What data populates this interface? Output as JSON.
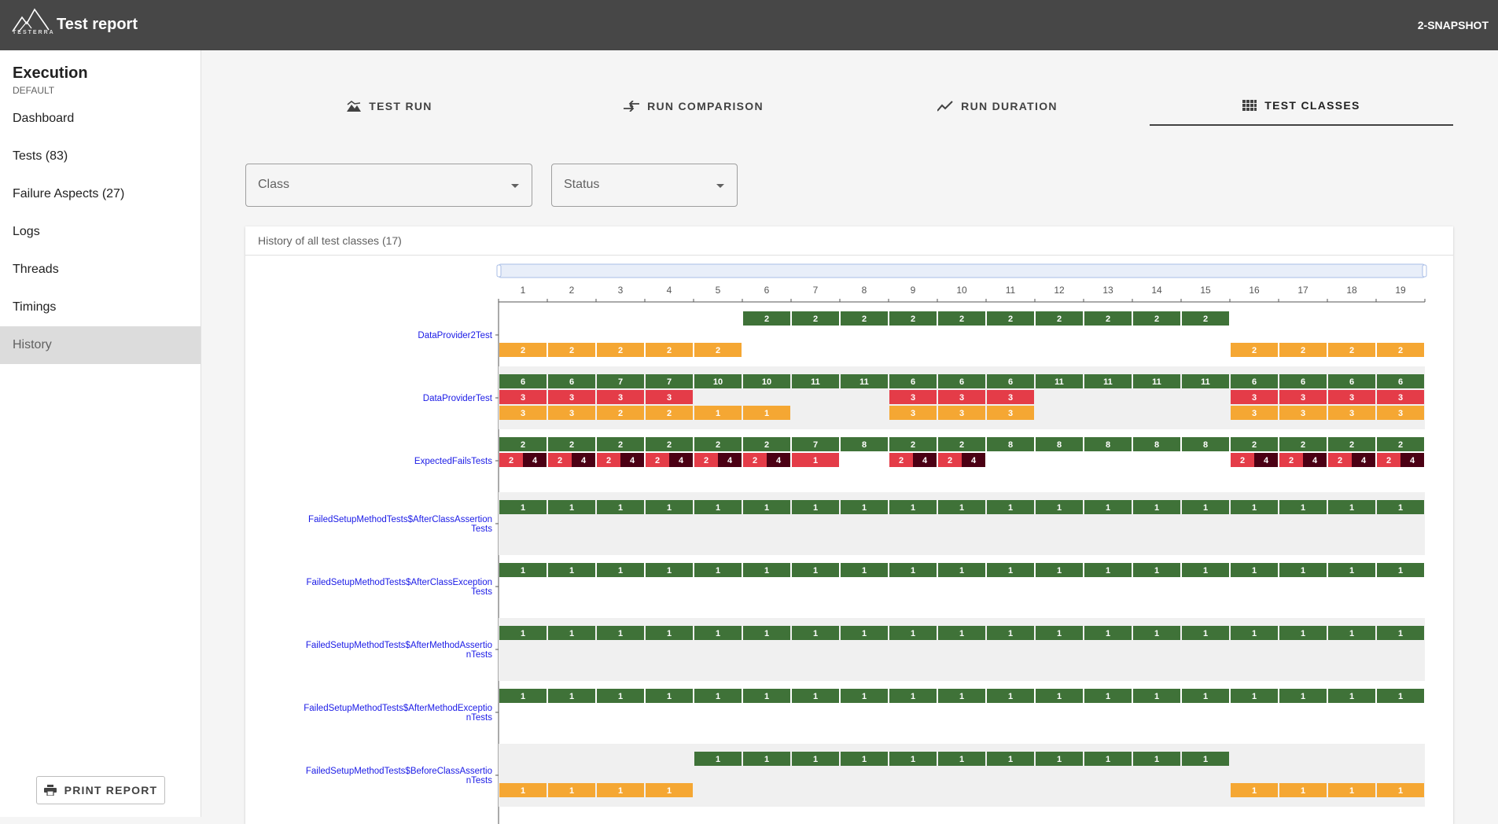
{
  "app": {
    "title": "Test report",
    "logo_text": "TESTERRA",
    "version": "2-SNAPSHOT"
  },
  "sidebar": {
    "title": "Execution",
    "subtitle": "DEFAULT",
    "items": [
      {
        "label": "Dashboard",
        "active": false
      },
      {
        "label": "Tests (83)",
        "active": false
      },
      {
        "label": "Failure Aspects (27)",
        "active": false
      },
      {
        "label": "Logs",
        "active": false
      },
      {
        "label": "Threads",
        "active": false
      },
      {
        "label": "Timings",
        "active": false
      },
      {
        "label": "History",
        "active": true
      }
    ],
    "print_label": "PRINT REPORT"
  },
  "tabs": [
    {
      "label": "TEST RUN",
      "icon": "landscape-icon",
      "active": false
    },
    {
      "label": "RUN COMPARISON",
      "icon": "compare-arrows-icon",
      "active": false
    },
    {
      "label": "RUN DURATION",
      "icon": "trending-icon",
      "active": false
    },
    {
      "label": "TEST CLASSES",
      "icon": "grid-icon",
      "active": true
    }
  ],
  "filters": {
    "class_label": "Class",
    "status_label": "Status"
  },
  "card": {
    "title": "History of all test classes (17)"
  },
  "colors": {
    "passed": "#3f7238",
    "failed": "#e43c48",
    "expected_failed": "#4b0014",
    "skipped": "#f5a733",
    "row_stripe": "#f0f0f0"
  },
  "chart_data": {
    "type": "heatmap",
    "runs": [
      1,
      2,
      3,
      4,
      5,
      6,
      7,
      8,
      9,
      10,
      11,
      12,
      13,
      14,
      15,
      16,
      17,
      18,
      19
    ],
    "classes": [
      {
        "name": "DataProvider2Test",
        "passed": [
          null,
          null,
          null,
          null,
          null,
          2,
          2,
          2,
          2,
          2,
          2,
          2,
          2,
          2,
          2,
          null,
          null,
          null,
          null
        ],
        "failed": [],
        "expected_failed": [],
        "skipped": [
          2,
          2,
          2,
          2,
          2,
          null,
          null,
          null,
          null,
          null,
          null,
          null,
          null,
          null,
          null,
          2,
          2,
          2,
          2
        ]
      },
      {
        "name": "DataProviderTest",
        "passed": [
          6,
          6,
          7,
          7,
          10,
          10,
          11,
          11,
          6,
          6,
          6,
          11,
          11,
          11,
          11,
          6,
          6,
          6,
          6
        ],
        "failed": [
          3,
          3,
          3,
          3,
          null,
          null,
          null,
          null,
          3,
          3,
          3,
          null,
          null,
          null,
          null,
          3,
          3,
          3,
          3
        ],
        "expected_failed": [],
        "skipped": [
          3,
          3,
          2,
          2,
          1,
          1,
          null,
          null,
          3,
          3,
          3,
          null,
          null,
          null,
          null,
          3,
          3,
          3,
          3
        ]
      },
      {
        "name": "ExpectedFailsTests",
        "passed": [
          2,
          2,
          2,
          2,
          2,
          2,
          7,
          8,
          2,
          2,
          8,
          8,
          8,
          8,
          8,
          2,
          2,
          2,
          2
        ],
        "failed": [
          2,
          2,
          2,
          2,
          2,
          2,
          1,
          null,
          2,
          2,
          null,
          null,
          null,
          null,
          null,
          2,
          2,
          2,
          2
        ],
        "expected_failed": [
          4,
          4,
          4,
          4,
          4,
          4,
          null,
          null,
          4,
          4,
          null,
          null,
          null,
          null,
          null,
          4,
          4,
          4,
          4
        ],
        "skipped": []
      },
      {
        "name": "FailedSetupMethodTests$AfterClassAssertionTests",
        "passed": [
          1,
          1,
          1,
          1,
          1,
          1,
          1,
          1,
          1,
          1,
          1,
          1,
          1,
          1,
          1,
          1,
          1,
          1,
          1
        ],
        "failed": [],
        "expected_failed": [],
        "skipped": []
      },
      {
        "name": "FailedSetupMethodTests$AfterClassExceptionTests",
        "passed": [
          1,
          1,
          1,
          1,
          1,
          1,
          1,
          1,
          1,
          1,
          1,
          1,
          1,
          1,
          1,
          1,
          1,
          1,
          1
        ],
        "failed": [],
        "expected_failed": [],
        "skipped": []
      },
      {
        "name": "FailedSetupMethodTests$AfterMethodAssertionTests",
        "passed": [
          1,
          1,
          1,
          1,
          1,
          1,
          1,
          1,
          1,
          1,
          1,
          1,
          1,
          1,
          1,
          1,
          1,
          1,
          1
        ],
        "failed": [],
        "expected_failed": [],
        "skipped": []
      },
      {
        "name": "FailedSetupMethodTests$AfterMethodExceptionTests",
        "passed": [
          1,
          1,
          1,
          1,
          1,
          1,
          1,
          1,
          1,
          1,
          1,
          1,
          1,
          1,
          1,
          1,
          1,
          1,
          1
        ],
        "failed": [],
        "expected_failed": [],
        "skipped": []
      },
      {
        "name": "FailedSetupMethodTests$BeforeClassAssertionTests",
        "passed": [
          null,
          null,
          null,
          null,
          1,
          1,
          1,
          1,
          1,
          1,
          1,
          1,
          1,
          1,
          1,
          null,
          null,
          null,
          null
        ],
        "failed": [],
        "expected_failed": [],
        "skipped": [
          1,
          1,
          1,
          1,
          null,
          null,
          null,
          null,
          null,
          null,
          null,
          null,
          null,
          null,
          null,
          1,
          1,
          1,
          1
        ]
      }
    ]
  }
}
